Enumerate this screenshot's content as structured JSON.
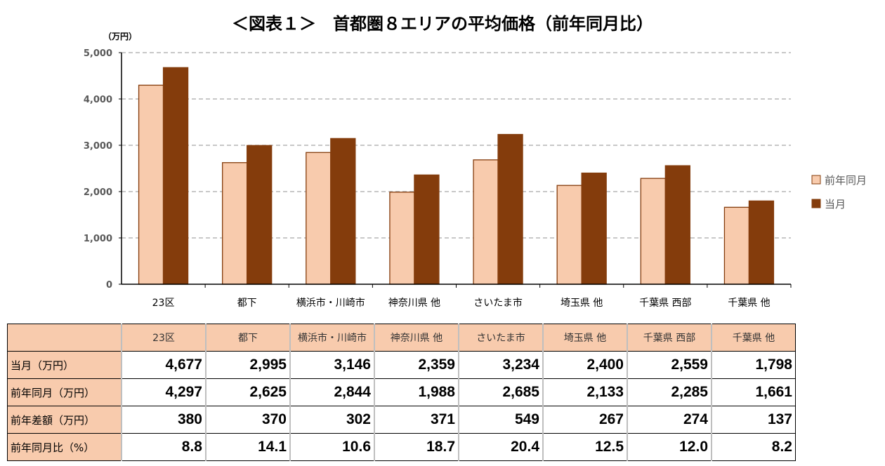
{
  "title": "＜図表１＞　首都圏８エリアの平均価格（前年同月比）",
  "chart_data": {
    "type": "bar",
    "title": "＜図表１＞　首都圏８エリアの平均価格（前年同月比）",
    "ylabel": "（万円）",
    "ylim": [
      0,
      5000
    ],
    "yticks": [
      "0",
      "1,000",
      "2,000",
      "3,000",
      "4,000",
      "5,000"
    ],
    "ytick_values": [
      0,
      1000,
      2000,
      3000,
      4000,
      5000
    ],
    "grid": true,
    "legend_position": "right",
    "categories": [
      "23区",
      "都下",
      "横浜市・川崎市",
      "神奈川県 他",
      "さいたま市",
      "埼玉県 他",
      "千葉県 西部",
      "千葉県 他"
    ],
    "series": [
      {
        "name": "前年同月",
        "color": "#f8cbad",
        "values": [
          4297,
          2625,
          2844,
          1988,
          2685,
          2133,
          2285,
          1661
        ]
      },
      {
        "name": "当月",
        "color": "#843c0c",
        "values": [
          4677,
          2995,
          3146,
          2359,
          3234,
          2400,
          2559,
          1798
        ]
      }
    ]
  },
  "table": {
    "header": [
      "23区",
      "都下",
      "横浜市・川崎市",
      "神奈川県 他",
      "さいたま市",
      "埼玉県 他",
      "千葉県 西部",
      "千葉県 他"
    ],
    "rows": [
      {
        "label": "当月（万円）",
        "values": [
          "4,677",
          "2,995",
          "3,146",
          "2,359",
          "3,234",
          "2,400",
          "2,559",
          "1,798"
        ]
      },
      {
        "label": "前年同月（万円）",
        "values": [
          "4,297",
          "2,625",
          "2,844",
          "1,988",
          "2,685",
          "2,133",
          "2,285",
          "1,661"
        ]
      },
      {
        "label": "前年差額（万円）",
        "values": [
          "380",
          "370",
          "302",
          "371",
          "549",
          "267",
          "274",
          "137"
        ]
      },
      {
        "label": "前年同月比（%）",
        "values": [
          "8.8",
          "14.1",
          "10.6",
          "18.7",
          "20.4",
          "12.5",
          "12.0",
          "8.2"
        ]
      }
    ]
  }
}
